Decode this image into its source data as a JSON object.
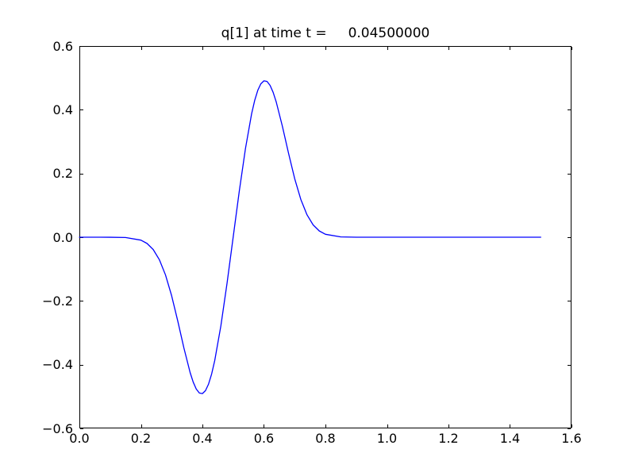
{
  "figure": {
    "background": "#ffffff",
    "frame_color": "#000000",
    "tick_color": "#000000"
  },
  "chart_data": {
    "type": "line",
    "title": "q[1] at time t =     0.04500000",
    "xlabel": "",
    "ylabel": "",
    "xlim": [
      0.0,
      1.6
    ],
    "ylim": [
      -0.6,
      0.6
    ],
    "grid": false,
    "legend": null,
    "xticks": {
      "values": [
        0.0,
        0.2,
        0.4,
        0.6,
        0.8,
        1.0,
        1.2,
        1.4,
        1.6
      ],
      "labels": [
        "0.0",
        "0.2",
        "0.4",
        "0.6",
        "0.8",
        "1.0",
        "1.2",
        "1.4",
        "1.6"
      ]
    },
    "yticks": {
      "values": [
        0.6,
        0.4,
        0.2,
        0.0,
        -0.2,
        -0.4,
        -0.6
      ],
      "labels": [
        "0.6",
        "0.4",
        "0.2",
        "0.0",
        "−0.2",
        "−0.4",
        "−0.6"
      ]
    },
    "series": [
      {
        "name": "q[1]",
        "color": "#0000ff",
        "line_width": 1.3,
        "x": [
          0.0,
          0.05,
          0.1,
          0.15,
          0.2,
          0.22,
          0.24,
          0.26,
          0.28,
          0.3,
          0.32,
          0.34,
          0.36,
          0.37,
          0.38,
          0.39,
          0.4,
          0.41,
          0.42,
          0.43,
          0.44,
          0.46,
          0.48,
          0.5,
          0.52,
          0.54,
          0.56,
          0.57,
          0.58,
          0.59,
          0.6,
          0.61,
          0.62,
          0.63,
          0.64,
          0.66,
          0.68,
          0.7,
          0.72,
          0.74,
          0.76,
          0.78,
          0.8,
          0.85,
          0.9,
          1.0,
          1.1,
          1.2,
          1.3,
          1.4,
          1.5
        ],
        "y": [
          0,
          0,
          -0.0001,
          -0.001,
          -0.0092,
          -0.0196,
          -0.0386,
          -0.0704,
          -0.1184,
          -0.1839,
          -0.2635,
          -0.3483,
          -0.4245,
          -0.4545,
          -0.4765,
          -0.489,
          -0.4908,
          -0.4815,
          -0.4608,
          -0.4292,
          -0.3874,
          -0.2784,
          -0.1452,
          0,
          0.1452,
          0.2784,
          0.3874,
          0.4292,
          0.4608,
          0.4815,
          0.4908,
          0.489,
          0.4765,
          0.4545,
          0.4245,
          0.3483,
          0.2635,
          0.1839,
          0.1184,
          0.0704,
          0.0386,
          0.0196,
          0.0092,
          0.001,
          0,
          0,
          0,
          0,
          0,
          0,
          0
        ]
      }
    ]
  }
}
